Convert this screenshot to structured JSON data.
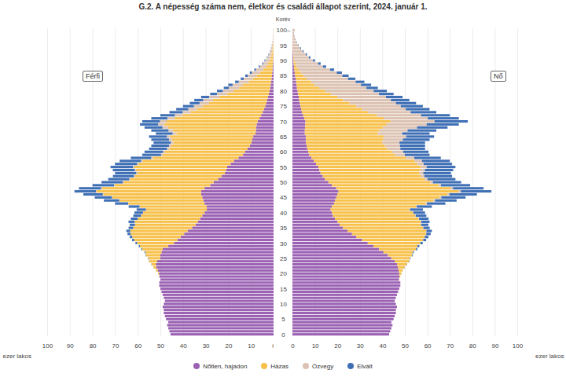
{
  "chart_data": [
    {
      "type": "bar",
      "orientation": "horizontal",
      "stacked": true,
      "title": "G.2. A népesség száma nem, életkor és családi állapot szerint, 2024. január 1.",
      "annotation": "Férfi",
      "legend": "bottom",
      "grid": true,
      "tick_labels": "x",
      "xlabel": "ezer lakos",
      "xlim": [
        100,
        0
      ],
      "xticks": [
        0,
        10,
        20,
        30,
        40,
        50,
        60,
        70,
        80,
        90,
        100
      ],
      "categories": [
        0,
        1,
        2,
        3,
        4,
        5,
        6,
        7,
        8,
        9,
        10,
        11,
        12,
        13,
        14,
        15,
        16,
        17,
        18,
        19,
        20,
        21,
        22,
        23,
        24,
        25,
        26,
        27,
        28,
        29,
        30,
        31,
        32,
        33,
        34,
        35,
        36,
        37,
        38,
        39,
        40,
        41,
        42,
        43,
        44,
        45,
        46,
        47,
        48,
        49,
        50,
        51,
        52,
        53,
        54,
        55,
        56,
        57,
        58,
        59,
        60,
        61,
        62,
        63,
        64,
        65,
        66,
        67,
        68,
        69,
        70,
        71,
        72,
        73,
        74,
        75,
        76,
        77,
        78,
        79,
        80,
        81,
        82,
        83,
        84,
        85,
        86,
        87,
        88,
        89,
        90,
        91,
        92,
        93,
        94,
        95,
        96,
        97,
        98,
        99,
        100
      ],
      "series": [
        {
          "name": "Nőtlen, hajadon",
          "color": "#9b62b4",
          "values": [
            45.5,
            46,
            46.5,
            47,
            46.5,
            47.5,
            48,
            48.5,
            48.5,
            49,
            48.5,
            48,
            48.5,
            49,
            49.5,
            50,
            50.5,
            50.5,
            50,
            50.4,
            50.6,
            51.2,
            51.8,
            52,
            51.5,
            50,
            50,
            49.5,
            49,
            46.5,
            44,
            42.5,
            41,
            39.5,
            38,
            36,
            34.5,
            33.5,
            32.5,
            31.5,
            30.5,
            29.5,
            29.5,
            30.5,
            31,
            31.5,
            32,
            32,
            30.5,
            28,
            26.5,
            24.5,
            23,
            21.5,
            21,
            20.5,
            19,
            17.5,
            15.5,
            13.5,
            12.5,
            11.5,
            10.5,
            9.8,
            9.5,
            9,
            8,
            7.8,
            7.8,
            7.5,
            7,
            6.2,
            5.5,
            4.8,
            4.2,
            3.7,
            3.2,
            2.9,
            2.5,
            2.1,
            1.8,
            1.5,
            1.3,
            1.1,
            0.9,
            0.7,
            0.6,
            0.5,
            0.35,
            0.3,
            0.2,
            0.15,
            0.12,
            0.08,
            0.05,
            0.04,
            0.03,
            0.02,
            0.01,
            0.01,
            0.01
          ]
        },
        {
          "name": "Házas",
          "color": "#f7c14c",
          "values": [
            0,
            0,
            0,
            0,
            0,
            0,
            0,
            0,
            0,
            0,
            0,
            0,
            0,
            0,
            0,
            0,
            0,
            0,
            0,
            0.1,
            0.4,
            0.8,
            1.2,
            1.9,
            3.4,
            5.4,
            6.3,
            7.2,
            9.1,
            12.5,
            16.3,
            19.1,
            21.4,
            23.6,
            25.3,
            26,
            26.7,
            27.8,
            27.5,
            27,
            27.1,
            26.8,
            29.6,
            33.6,
            37,
            39.7,
            43.2,
            46.2,
            45.4,
            42.2,
            39.8,
            38.9,
            38.3,
            38.7,
            39.8,
            41,
            40.7,
            40.3,
            37.8,
            35.4,
            35.4,
            34.6,
            34.6,
            34.4,
            35.3,
            36.5,
            34.9,
            36.6,
            38.9,
            40.7,
            40.2,
            37.5,
            34.7,
            31.8,
            29.7,
            27.5,
            25.3,
            23.8,
            21.4,
            18.3,
            15.9,
            13.7,
            12.2,
            9.9,
            8.2,
            6.8,
            5.4,
            4.1,
            3,
            2.1,
            1.6,
            1.1,
            0.8,
            0.5,
            0.4,
            0.3,
            0.15,
            0.1,
            0.08,
            0.03,
            0.06
          ]
        },
        {
          "name": "Özvegy",
          "color": "#dcc2b2",
          "values": [
            0,
            0,
            0,
            0,
            0,
            0,
            0,
            0,
            0,
            0,
            0,
            0,
            0,
            0,
            0,
            0,
            0,
            0,
            0,
            0,
            0,
            0,
            0,
            0,
            0,
            0,
            0,
            0,
            0,
            0,
            0.01,
            0.01,
            0.02,
            0.02,
            0.03,
            0.03,
            0.04,
            0.05,
            0.05,
            0.06,
            0.07,
            0.08,
            0.1,
            0.12,
            0.15,
            0.18,
            0.22,
            0.25,
            0.27,
            0.28,
            0.3,
            0.33,
            0.37,
            0.42,
            0.5,
            0.6,
            0.65,
            0.7,
            0.75,
            0.8,
            0.9,
            1,
            1.1,
            1.2,
            1.4,
            1.6,
            1.7,
            2,
            2.4,
            2.8,
            3,
            3.2,
            3.4,
            3.6,
            3.8,
            4,
            4.2,
            4.4,
            4.6,
            4.6,
            4.7,
            4.6,
            4.6,
            4.4,
            4.1,
            3.9,
            3.6,
            3.2,
            2.7,
            2.2,
            1.9,
            1.5,
            1.2,
            0.9,
            0.6,
            0.45,
            0.3,
            0.2,
            0.15,
            0.1,
            0.12
          ]
        },
        {
          "name": "Elvált",
          "color": "#3f6fb5",
          "values": [
            0,
            0,
            0,
            0,
            0,
            0,
            0,
            0,
            0,
            0,
            0,
            0,
            0,
            0,
            0,
            0,
            0,
            0,
            0,
            0,
            0,
            0,
            0.05,
            0.1,
            0.1,
            0.15,
            0.2,
            0.3,
            0.4,
            0.5,
            0.7,
            0.9,
            1.1,
            1.4,
            1.7,
            2,
            2.3,
            2.7,
            3,
            3.4,
            3.8,
            4.1,
            4.8,
            5.8,
            6.8,
            7.6,
            8.6,
            9.5,
            9.8,
            9.5,
            9.4,
            9.3,
            9.3,
            9.4,
            9.7,
            9.9,
            9.7,
            9.5,
            9,
            8.3,
            8.2,
            7.9,
            7.8,
            7.6,
            7.8,
            7.9,
            7.4,
            7.6,
            7.9,
            8,
            7.8,
            7.1,
            6.4,
            5.8,
            5.3,
            4.8,
            4.3,
            3.9,
            3.5,
            3,
            2.6,
            2.2,
            1.9,
            1.6,
            1.3,
            1.1,
            0.9,
            0.7,
            0.5,
            0.4,
            0.3,
            0.2,
            0.15,
            0.1,
            0.07,
            0.05,
            0.03,
            0.02,
            0.01,
            0.01,
            0.01
          ]
        }
      ]
    },
    {
      "type": "bar",
      "orientation": "horizontal",
      "stacked": true,
      "annotation": "Nő",
      "grid": true,
      "xlabel": "ezer lakos",
      "xlim": [
        0,
        100
      ],
      "xticks": [
        0,
        10,
        20,
        30,
        40,
        50,
        60,
        70,
        80,
        90,
        100
      ],
      "ylabel": "Korév",
      "yticks": [
        0,
        5,
        10,
        15,
        20,
        25,
        30,
        35,
        40,
        45,
        50,
        55,
        60,
        65,
        70,
        75,
        80,
        85,
        90,
        95,
        {
          "value": 100,
          "label": "100–"
        }
      ],
      "categories": [
        0,
        1,
        2,
        3,
        4,
        5,
        6,
        7,
        8,
        9,
        10,
        11,
        12,
        13,
        14,
        15,
        16,
        17,
        18,
        19,
        20,
        21,
        22,
        23,
        24,
        25,
        26,
        27,
        28,
        29,
        30,
        31,
        32,
        33,
        34,
        35,
        36,
        37,
        38,
        39,
        40,
        41,
        42,
        43,
        44,
        45,
        46,
        47,
        48,
        49,
        50,
        51,
        52,
        53,
        54,
        55,
        56,
        57,
        58,
        59,
        60,
        61,
        62,
        63,
        64,
        65,
        66,
        67,
        68,
        69,
        70,
        71,
        72,
        73,
        74,
        75,
        76,
        77,
        78,
        79,
        80,
        81,
        82,
        83,
        84,
        85,
        86,
        87,
        88,
        89,
        90,
        91,
        92,
        93,
        94,
        95,
        96,
        97,
        98,
        99,
        100
      ],
      "series": [
        {
          "name": "Nőtlen, hajadon",
          "color": "#9b62b4",
          "values": [
            43,
            43.5,
            44,
            44.5,
            44,
            45,
            45.5,
            46,
            46,
            46.5,
            46,
            45.5,
            46,
            46.5,
            47,
            47.5,
            48,
            48,
            47.4,
            47.6,
            47.5,
            47.2,
            47,
            46.5,
            45.5,
            44,
            42.5,
            40.5,
            38.5,
            36,
            33.5,
            31,
            28.5,
            26.5,
            24.5,
            22.5,
            21,
            20,
            19,
            18,
            17.5,
            17,
            17.5,
            18.5,
            19,
            19.5,
            20,
            20.5,
            19.5,
            17.5,
            16,
            14.5,
            13.5,
            12.5,
            12,
            11.5,
            10.5,
            9.5,
            8.5,
            7.5,
            7,
            6.6,
            6.3,
            6,
            6,
            6,
            5.5,
            5.5,
            5.6,
            5.7,
            5.8,
            5.3,
            4.8,
            4.2,
            3.9,
            3.6,
            3.3,
            3,
            2.8,
            2.5,
            2.3,
            2,
            1.8,
            1.6,
            1.4,
            1.2,
            1,
            0.85,
            0.7,
            0.55,
            0.45,
            0.35,
            0.3,
            0.22,
            0.17,
            0.12,
            0.09,
            0.06,
            0.05,
            0.03,
            0.05
          ]
        },
        {
          "name": "Házas",
          "color": "#f7c14c",
          "values": [
            0,
            0,
            0,
            0,
            0,
            0,
            0,
            0,
            0,
            0,
            0,
            0,
            0,
            0,
            0,
            0,
            0,
            0,
            0.1,
            0.4,
            1,
            1.8,
            2.9,
            4.4,
            6.4,
            8.3,
            10.7,
            13.1,
            16.4,
            19.6,
            23.4,
            27.1,
            30.3,
            32.9,
            35,
            35.6,
            36.1,
            37.1,
            37.1,
            36.6,
            36,
            35,
            37.4,
            40.8,
            43.8,
            46,
            49,
            53.4,
            50.8,
            47.4,
            45.2,
            44.2,
            43.6,
            43.9,
            44.8,
            45.7,
            45,
            44.8,
            41.9,
            38.2,
            37.3,
            35.6,
            34.8,
            34,
            34.3,
            34.6,
            32.5,
            33.1,
            34.8,
            36.2,
            37.8,
            35.3,
            32.8,
            29.6,
            27.1,
            24.8,
            22.1,
            19.6,
            17.2,
            14.6,
            12.3,
            9.9,
            8.1,
            6.7,
            4.9,
            3.8,
            2.7,
            1.9,
            1.2,
            0.9,
            0.5,
            0.3,
            0.2,
            0.17,
            0.12,
            0.1,
            0.04,
            0.06,
            0.02,
            0.03,
            0.05
          ]
        },
        {
          "name": "Özvegy",
          "color": "#dcc2b2",
          "values": [
            0,
            0,
            0,
            0,
            0,
            0,
            0,
            0,
            0,
            0,
            0,
            0,
            0,
            0,
            0,
            0,
            0,
            0,
            0,
            0,
            0,
            0,
            0,
            0,
            0,
            0.02,
            0.02,
            0.03,
            0.04,
            0.05,
            0.06,
            0.07,
            0.09,
            0.1,
            0.12,
            0.14,
            0.16,
            0.19,
            0.22,
            0.25,
            0.3,
            0.35,
            0.42,
            0.52,
            0.62,
            0.72,
            0.85,
            1,
            1.1,
            1.15,
            1.25,
            1.4,
            1.6,
            1.8,
            2.1,
            2.5,
            2.9,
            3.3,
            3.8,
            4.3,
            5,
            5.8,
            6.7,
            7.6,
            8.8,
            10,
            10.8,
            12.6,
            15,
            17.8,
            19.6,
            19.6,
            19.6,
            18.8,
            19.4,
            19.8,
            20.6,
            21.2,
            21.6,
            21.4,
            21.5,
            21,
            20.6,
            19.8,
            18.4,
            17.2,
            16,
            14,
            11.7,
            10,
            8.2,
            6.7,
            5.5,
            4.25,
            3.25,
            2.4,
            1.75,
            1.2,
            0.87,
            0.6,
            0.85
          ]
        },
        {
          "name": "Elvált",
          "color": "#3f6fb5",
          "values": [
            0,
            0,
            0,
            0,
            0,
            0,
            0,
            0,
            0,
            0,
            0,
            0,
            0,
            0,
            0,
            0,
            0,
            0,
            0,
            0,
            0.02,
            0.04,
            0.07,
            0.1,
            0.15,
            0.2,
            0.3,
            0.4,
            0.6,
            0.8,
            1,
            1.3,
            1.6,
            2,
            2.4,
            2.8,
            3.2,
            3.7,
            4.2,
            4.7,
            5.2,
            5.7,
            6.7,
            8.2,
            9.6,
            10.8,
            12.2,
            13.6,
            13.6,
            13,
            12.6,
            12.4,
            12.3,
            12.3,
            12.6,
            12.8,
            12.6,
            12.4,
            11.8,
            11,
            11.2,
            11,
            11.2,
            11.4,
            11.9,
            12.4,
            12.2,
            12.8,
            13.6,
            14.3,
            14.8,
            13.8,
            12.8,
            11.4,
            10.6,
            9.8,
            9,
            8.2,
            7.4,
            6.5,
            5.9,
            5.1,
            4.5,
            3.9,
            3.3,
            2.8,
            2.3,
            1.8,
            1.4,
            1.1,
            0.85,
            0.65,
            0.5,
            0.36,
            0.26,
            0.18,
            0.12,
            0.08,
            0.06,
            0.04,
            0.05
          ]
        }
      ]
    }
  ]
}
